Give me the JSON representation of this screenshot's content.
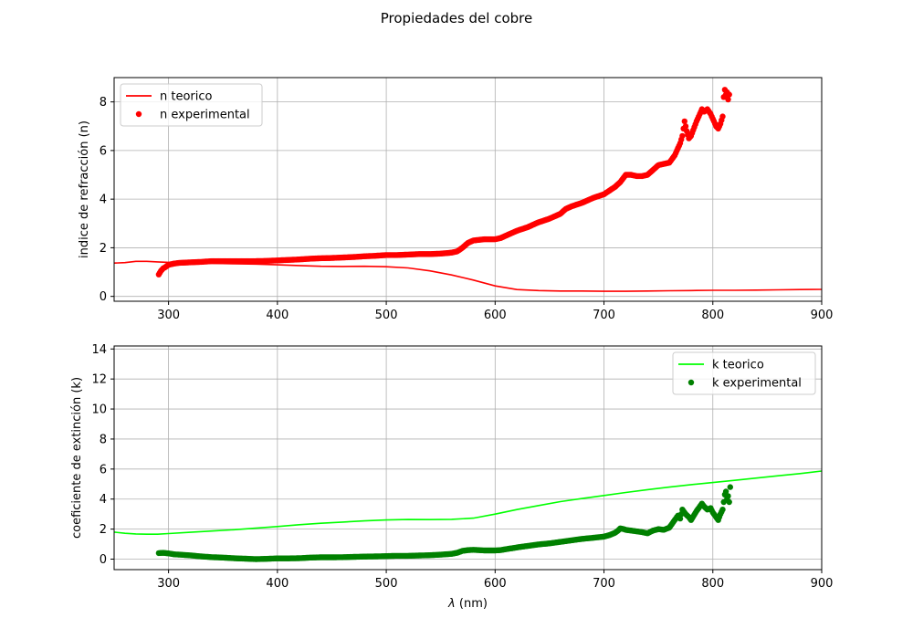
{
  "figure_title": "Propiedades del cobre",
  "chart_data": [
    {
      "type": "line",
      "ylabel": "indice de refracción (n)",
      "xlabel": "",
      "xlim": [
        250,
        900
      ],
      "ylim": [
        -0.2,
        9.0
      ],
      "xticks": [
        300,
        400,
        500,
        600,
        700,
        800,
        900
      ],
      "yticks": [
        0,
        2,
        4,
        6,
        8
      ],
      "grid": true,
      "legend_position": "upper-left",
      "series": [
        {
          "name": "n teorico",
          "kind": "line",
          "color": "#ff0000",
          "x": [
            250,
            260,
            270,
            280,
            290,
            300,
            320,
            340,
            360,
            380,
            400,
            420,
            440,
            460,
            480,
            500,
            520,
            540,
            560,
            580,
            600,
            620,
            640,
            660,
            680,
            700,
            720,
            740,
            760,
            780,
            800,
            820,
            840,
            860,
            880,
            900
          ],
          "y": [
            1.37,
            1.39,
            1.44,
            1.44,
            1.42,
            1.4,
            1.38,
            1.36,
            1.34,
            1.33,
            1.3,
            1.27,
            1.24,
            1.23,
            1.24,
            1.22,
            1.17,
            1.05,
            0.88,
            0.67,
            0.43,
            0.28,
            0.24,
            0.22,
            0.22,
            0.21,
            0.21,
            0.22,
            0.23,
            0.24,
            0.25,
            0.25,
            0.26,
            0.27,
            0.28,
            0.29
          ]
        },
        {
          "name": "n experimental",
          "kind": "scatter",
          "color": "#ff0000",
          "x": [
            291,
            293,
            295,
            297,
            300,
            305,
            310,
            320,
            330,
            340,
            350,
            360,
            370,
            380,
            390,
            400,
            410,
            420,
            430,
            440,
            450,
            460,
            470,
            480,
            490,
            500,
            510,
            520,
            530,
            540,
            550,
            560,
            565,
            570,
            575,
            580,
            590,
            600,
            605,
            610,
            615,
            620,
            630,
            640,
            650,
            660,
            665,
            670,
            680,
            690,
            700,
            705,
            710,
            715,
            720,
            725,
            730,
            735,
            740,
            745,
            750,
            755,
            760,
            765,
            770,
            772,
            774,
            776,
            778,
            780,
            785,
            788,
            790,
            792,
            795,
            798,
            800,
            803,
            805,
            807,
            809,
            810,
            811,
            812,
            813,
            814,
            815
          ],
          "y": [
            0.9,
            1.05,
            1.15,
            1.2,
            1.3,
            1.35,
            1.38,
            1.4,
            1.42,
            1.45,
            1.45,
            1.45,
            1.45,
            1.45,
            1.46,
            1.48,
            1.5,
            1.52,
            1.55,
            1.57,
            1.58,
            1.6,
            1.62,
            1.65,
            1.67,
            1.7,
            1.7,
            1.72,
            1.74,
            1.74,
            1.76,
            1.8,
            1.85,
            2.0,
            2.2,
            2.3,
            2.35,
            2.35,
            2.4,
            2.5,
            2.6,
            2.7,
            2.85,
            3.05,
            3.2,
            3.4,
            3.6,
            3.7,
            3.85,
            4.05,
            4.2,
            4.35,
            4.5,
            4.7,
            5.0,
            5.0,
            4.95,
            4.95,
            5.0,
            5.2,
            5.4,
            5.45,
            5.5,
            5.8,
            6.3,
            6.6,
            7.2,
            6.8,
            6.5,
            6.6,
            7.2,
            7.5,
            7.7,
            7.6,
            7.7,
            7.5,
            7.3,
            7.0,
            6.9,
            7.1,
            7.4,
            8.2,
            8.5,
            8.3,
            8.4,
            8.1,
            8.3
          ]
        }
      ]
    },
    {
      "type": "line",
      "ylabel": "coeficiente de extinción (k)",
      "xlabel": "$\\lambda$ (nm)",
      "xlabel_display": "λ (nm)",
      "xlim": [
        250,
        900
      ],
      "ylim": [
        -0.7,
        14.2
      ],
      "xticks": [
        300,
        400,
        500,
        600,
        700,
        800,
        900
      ],
      "yticks": [
        0,
        2,
        4,
        6,
        8,
        10,
        12,
        14
      ],
      "grid": true,
      "legend_position": "upper-right",
      "series": [
        {
          "name": "k teorico",
          "kind": "line",
          "color": "#00ff00",
          "x": [
            250,
            260,
            270,
            280,
            290,
            300,
            320,
            340,
            360,
            380,
            400,
            420,
            440,
            460,
            480,
            500,
            520,
            540,
            560,
            580,
            600,
            620,
            640,
            660,
            680,
            700,
            720,
            740,
            760,
            780,
            800,
            820,
            840,
            860,
            880,
            900
          ],
          "y": [
            1.8,
            1.72,
            1.68,
            1.66,
            1.66,
            1.7,
            1.79,
            1.87,
            1.96,
            2.06,
            2.17,
            2.29,
            2.39,
            2.47,
            2.55,
            2.61,
            2.64,
            2.63,
            2.65,
            2.73,
            3.0,
            3.3,
            3.57,
            3.83,
            4.04,
            4.24,
            4.44,
            4.63,
            4.8,
            4.96,
            5.1,
            5.25,
            5.4,
            5.55,
            5.7,
            5.87
          ]
        },
        {
          "name": "k experimental",
          "kind": "scatter",
          "color": "#008000",
          "x": [
            291,
            295,
            300,
            305,
            310,
            320,
            330,
            340,
            350,
            360,
            370,
            380,
            390,
            400,
            410,
            420,
            430,
            440,
            450,
            460,
            470,
            480,
            490,
            500,
            510,
            520,
            530,
            540,
            550,
            560,
            565,
            570,
            575,
            580,
            590,
            600,
            605,
            610,
            615,
            620,
            630,
            640,
            650,
            660,
            670,
            680,
            690,
            700,
            705,
            710,
            713,
            715,
            718,
            720,
            725,
            730,
            735,
            740,
            745,
            750,
            755,
            760,
            765,
            768,
            770,
            772,
            775,
            778,
            780,
            785,
            788,
            790,
            792,
            795,
            798,
            800,
            803,
            805,
            807,
            809,
            810,
            811,
            812,
            813,
            814,
            815,
            816
          ],
          "y": [
            0.4,
            0.42,
            0.38,
            0.32,
            0.3,
            0.25,
            0.18,
            0.13,
            0.1,
            0.06,
            0.03,
            0.0,
            0.02,
            0.05,
            0.05,
            0.06,
            0.1,
            0.12,
            0.12,
            0.13,
            0.15,
            0.17,
            0.18,
            0.2,
            0.22,
            0.22,
            0.24,
            0.26,
            0.3,
            0.35,
            0.42,
            0.55,
            0.6,
            0.62,
            0.58,
            0.58,
            0.6,
            0.66,
            0.72,
            0.78,
            0.88,
            0.98,
            1.05,
            1.15,
            1.25,
            1.35,
            1.42,
            1.5,
            1.6,
            1.75,
            1.9,
            2.05,
            2.0,
            1.95,
            1.9,
            1.85,
            1.8,
            1.72,
            1.9,
            2.0,
            1.95,
            2.1,
            2.6,
            2.9,
            2.7,
            3.3,
            3.0,
            2.8,
            2.6,
            3.2,
            3.5,
            3.7,
            3.5,
            3.3,
            3.4,
            3.1,
            2.8,
            2.6,
            3.0,
            3.3,
            3.8,
            4.3,
            4.5,
            4.0,
            4.2,
            3.8,
            4.8
          ]
        }
      ]
    }
  ]
}
